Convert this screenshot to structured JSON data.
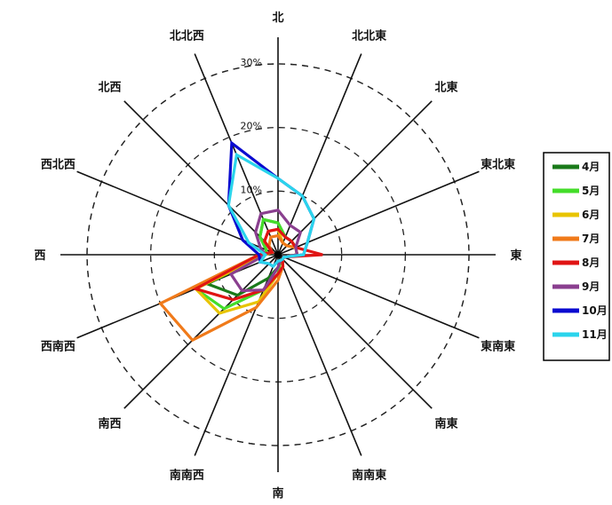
{
  "chart_data": {
    "type": "radar",
    "title": "",
    "directions": [
      "北",
      "北北東",
      "北東",
      "東北東",
      "東",
      "東南東",
      "南東",
      "南南東",
      "南",
      "南南西",
      "南西",
      "西南西",
      "西",
      "西北西",
      "北西",
      "北北西"
    ],
    "rmax": 30,
    "rings": [
      10,
      20,
      30
    ],
    "tick_labels": [
      "10%",
      "20%",
      "30%"
    ],
    "grid": true,
    "legend_position": "right",
    "series": [
      {
        "name": "4月",
        "color": "#1a7a1a",
        "values": [
          5,
          3,
          3,
          3,
          3,
          1,
          1,
          1,
          2,
          4,
          9,
          12,
          2,
          2,
          4,
          6
        ]
      },
      {
        "name": "5月",
        "color": "#44dd2a",
        "values": [
          5,
          3,
          3,
          3,
          3,
          1,
          1,
          1,
          3,
          6,
          12,
          14,
          2,
          2,
          4,
          6
        ]
      },
      {
        "name": "6月",
        "color": "#e8c400",
        "values": [
          4,
          2,
          2,
          3,
          3,
          1,
          1,
          2,
          3,
          8,
          13,
          14,
          2,
          1,
          3,
          4
        ]
      },
      {
        "name": "7月",
        "color": "#f07a1a",
        "values": [
          3,
          2,
          2,
          3,
          3,
          1,
          1,
          2,
          4,
          9,
          19,
          20,
          3,
          1,
          2,
          3
        ]
      },
      {
        "name": "8月",
        "color": "#e01414",
        "values": [
          4,
          3,
          3,
          3,
          7,
          1,
          1,
          2,
          3,
          6,
          10,
          14,
          3,
          1,
          3,
          4
        ]
      },
      {
        "name": "9月",
        "color": "#8a3f8f",
        "values": [
          7,
          5,
          5,
          3,
          3,
          1,
          1,
          1,
          2,
          6,
          8,
          8,
          2,
          3,
          5,
          7
        ]
      },
      {
        "name": "10月",
        "color": "#0a0ad0",
        "values": [
          12,
          10,
          8,
          5,
          4,
          1,
          1,
          1,
          1,
          2,
          2,
          3,
          3,
          6,
          11,
          19
        ]
      },
      {
        "name": "11月",
        "color": "#2ad4ec",
        "values": [
          12,
          10,
          8,
          5,
          4,
          1,
          1,
          1,
          1,
          2,
          2,
          3,
          2,
          5,
          11,
          17
        ]
      }
    ]
  }
}
